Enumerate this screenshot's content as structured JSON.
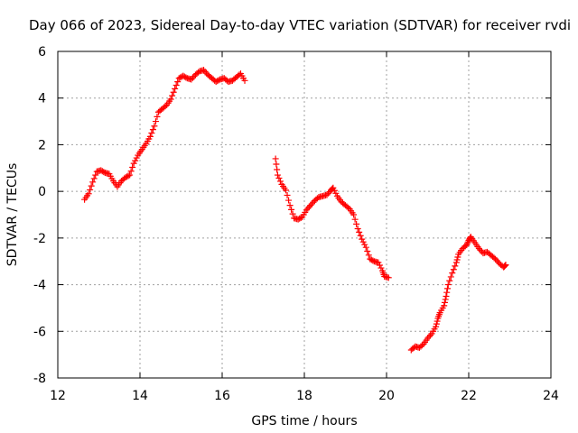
{
  "chart_data": {
    "type": "scatter",
    "title": "Day 066 of 2023, Sidereal Day-to-day VTEC variation (SDTVAR) for receiver rvdi",
    "xlabel": "GPS time / hours",
    "ylabel": "SDTVAR / TECUs",
    "xlim": [
      12,
      24
    ],
    "ylim": [
      -8,
      6
    ],
    "x_ticks": [
      "12",
      "14",
      "16",
      "18",
      "20",
      "22",
      "24"
    ],
    "y_ticks": [
      "-8",
      "-6",
      "-4",
      "-2",
      "0",
      "2",
      "4",
      "6"
    ],
    "grid": true,
    "marker": "+",
    "color": "#ff0000",
    "series": [
      {
        "points": [
          [
            12.65,
            -0.35
          ],
          [
            12.75,
            -0.1
          ],
          [
            12.85,
            0.4
          ],
          [
            12.95,
            0.85
          ],
          [
            13.05,
            0.9
          ],
          [
            13.15,
            0.8
          ],
          [
            13.25,
            0.75
          ],
          [
            13.35,
            0.45
          ],
          [
            13.45,
            0.2
          ],
          [
            13.55,
            0.45
          ],
          [
            13.65,
            0.6
          ],
          [
            13.75,
            0.7
          ],
          [
            13.85,
            1.2
          ],
          [
            13.95,
            1.55
          ],
          [
            14.05,
            1.8
          ],
          [
            14.15,
            2.05
          ],
          [
            14.25,
            2.35
          ],
          [
            14.35,
            2.8
          ],
          [
            14.45,
            3.4
          ],
          [
            14.55,
            3.55
          ],
          [
            14.65,
            3.7
          ],
          [
            14.75,
            3.95
          ],
          [
            14.85,
            4.4
          ],
          [
            14.95,
            4.85
          ],
          [
            15.05,
            4.95
          ],
          [
            15.15,
            4.85
          ],
          [
            15.25,
            4.8
          ],
          [
            15.35,
            5.0
          ],
          [
            15.45,
            5.15
          ],
          [
            15.55,
            5.2
          ],
          [
            15.65,
            5.0
          ],
          [
            15.75,
            4.85
          ],
          [
            15.85,
            4.7
          ],
          [
            15.95,
            4.8
          ],
          [
            16.05,
            4.85
          ],
          [
            16.15,
            4.7
          ],
          [
            16.25,
            4.75
          ],
          [
            16.35,
            4.9
          ],
          [
            16.45,
            5.05
          ],
          [
            16.55,
            4.75
          ]
        ]
      },
      {
        "points": [
          [
            17.3,
            1.4
          ],
          [
            17.35,
            0.7
          ],
          [
            17.45,
            0.3
          ],
          [
            17.55,
            0.05
          ],
          [
            17.65,
            -0.6
          ],
          [
            17.75,
            -1.15
          ],
          [
            17.85,
            -1.2
          ],
          [
            17.95,
            -1.1
          ],
          [
            18.05,
            -0.8
          ],
          [
            18.15,
            -0.6
          ],
          [
            18.25,
            -0.4
          ],
          [
            18.35,
            -0.25
          ],
          [
            18.45,
            -0.2
          ],
          [
            18.55,
            -0.15
          ],
          [
            18.65,
            0.05
          ],
          [
            18.7,
            0.15
          ],
          [
            18.8,
            -0.2
          ],
          [
            18.9,
            -0.45
          ],
          [
            19.0,
            -0.6
          ],
          [
            19.1,
            -0.75
          ],
          [
            19.2,
            -1.0
          ],
          [
            19.3,
            -1.6
          ],
          [
            19.4,
            -2.05
          ],
          [
            19.5,
            -2.4
          ],
          [
            19.6,
            -2.9
          ],
          [
            19.7,
            -3.0
          ],
          [
            19.8,
            -3.05
          ],
          [
            19.9,
            -3.4
          ],
          [
            19.95,
            -3.65
          ],
          [
            20.05,
            -3.7
          ]
        ]
      },
      {
        "points": [
          [
            20.6,
            -6.8
          ],
          [
            20.7,
            -6.65
          ],
          [
            20.8,
            -6.7
          ],
          [
            20.9,
            -6.55
          ],
          [
            21.0,
            -6.3
          ],
          [
            21.1,
            -6.1
          ],
          [
            21.2,
            -5.8
          ],
          [
            21.25,
            -5.45
          ],
          [
            21.3,
            -5.2
          ],
          [
            21.4,
            -4.9
          ],
          [
            21.45,
            -4.5
          ],
          [
            21.5,
            -4.0
          ],
          [
            21.6,
            -3.5
          ],
          [
            21.7,
            -3.05
          ],
          [
            21.75,
            -2.7
          ],
          [
            21.85,
            -2.45
          ],
          [
            21.95,
            -2.3
          ],
          [
            22.0,
            -2.1
          ],
          [
            22.05,
            -1.95
          ],
          [
            22.15,
            -2.2
          ],
          [
            22.25,
            -2.45
          ],
          [
            22.35,
            -2.65
          ],
          [
            22.45,
            -2.6
          ],
          [
            22.55,
            -2.75
          ],
          [
            22.65,
            -2.9
          ],
          [
            22.75,
            -3.1
          ],
          [
            22.85,
            -3.25
          ],
          [
            22.9,
            -3.15
          ]
        ]
      }
    ]
  }
}
